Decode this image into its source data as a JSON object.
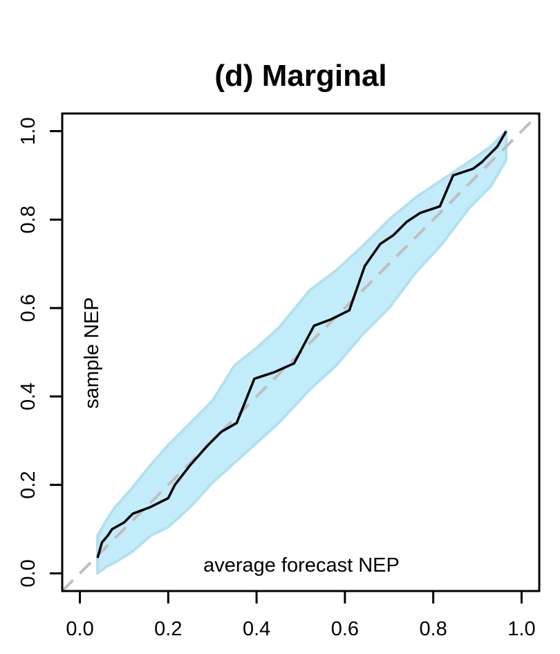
{
  "chart_data": {
    "type": "line",
    "title": "(d) Marginal",
    "xlabel": "",
    "ylabel": "",
    "xlim": [
      -0.04,
      1.04
    ],
    "ylim": [
      -0.04,
      1.04
    ],
    "x_ticks": [
      0.0,
      0.2,
      0.4,
      0.6,
      0.8,
      1.0
    ],
    "y_ticks": [
      0.0,
      0.2,
      0.4,
      0.6,
      0.8,
      1.0
    ],
    "x_tick_labels": [
      "0.0",
      "0.2",
      "0.4",
      "0.6",
      "0.8",
      "1.0"
    ],
    "y_tick_labels": [
      "0.0",
      "0.2",
      "0.4",
      "0.6",
      "0.8",
      "1.0"
    ],
    "annotations": {
      "inside_y": "sample NEP",
      "inside_x": "average forecast NEP"
    },
    "colors": {
      "band_fill": "#c2ecfa",
      "band_edge": "#b3e0ee",
      "line": "#000000",
      "diagonal": "#bebebe"
    },
    "series": [
      {
        "values_x": [
          0.04,
          0.05,
          0.063,
          0.073,
          0.1,
          0.12,
          0.16,
          0.2,
          0.215,
          0.25,
          0.29,
          0.32,
          0.355,
          0.395,
          0.44,
          0.485,
          0.53,
          0.57,
          0.61,
          0.645,
          0.68,
          0.71,
          0.74,
          0.77,
          0.815,
          0.845,
          0.89,
          0.91,
          0.945,
          0.965
        ],
        "values_y": [
          0.035,
          0.07,
          0.085,
          0.1,
          0.115,
          0.135,
          0.15,
          0.17,
          0.2,
          0.245,
          0.29,
          0.32,
          0.34,
          0.44,
          0.455,
          0.475,
          0.56,
          0.575,
          0.595,
          0.695,
          0.745,
          0.765,
          0.795,
          0.815,
          0.83,
          0.9,
          0.915,
          0.93,
          0.965,
          1.0
        ]
      }
    ],
    "band": {
      "x": [
        0.04,
        0.06,
        0.08,
        0.12,
        0.16,
        0.2,
        0.25,
        0.3,
        0.35,
        0.4,
        0.45,
        0.52,
        0.58,
        0.64,
        0.7,
        0.76,
        0.82,
        0.88,
        0.93,
        0.965
      ],
      "lower": [
        0.0,
        0.015,
        0.025,
        0.05,
        0.085,
        0.105,
        0.15,
        0.205,
        0.25,
        0.295,
        0.34,
        0.415,
        0.47,
        0.54,
        0.6,
        0.68,
        0.745,
        0.825,
        0.875,
        0.935
      ],
      "upper": [
        0.085,
        0.12,
        0.15,
        0.195,
        0.245,
        0.29,
        0.34,
        0.39,
        0.47,
        0.51,
        0.555,
        0.64,
        0.685,
        0.74,
        0.8,
        0.85,
        0.89,
        0.93,
        0.965,
        1.0
      ]
    },
    "reference_line": {
      "from": [
        -0.04,
        -0.04
      ],
      "to": [
        1.04,
        1.04
      ]
    }
  }
}
